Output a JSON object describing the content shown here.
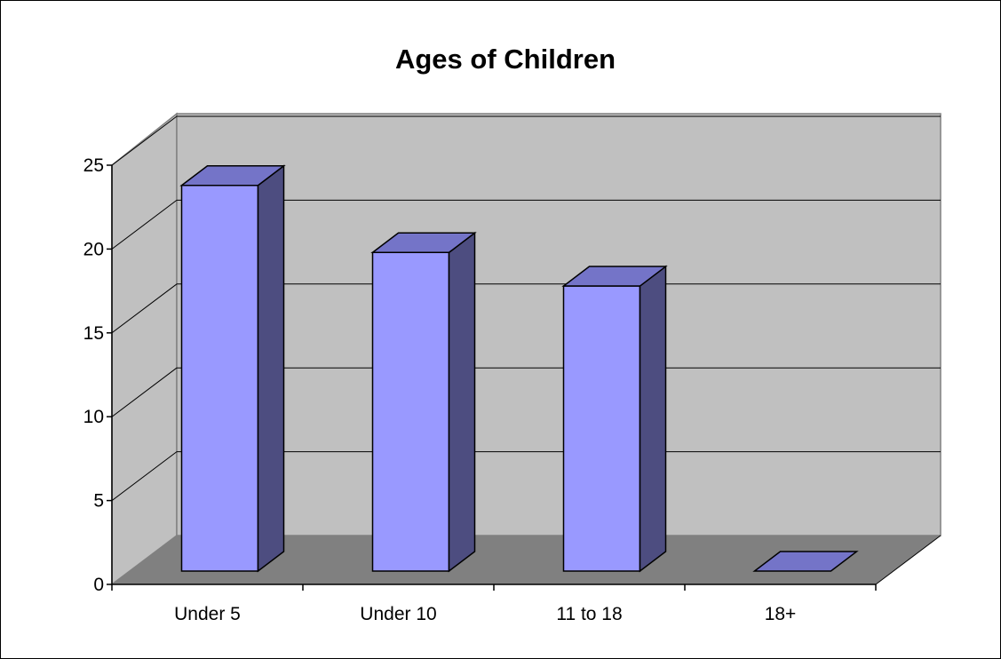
{
  "chart_data": {
    "type": "bar",
    "title": "Ages of Children",
    "xlabel": "",
    "ylabel": "",
    "categories": [
      "Under 5",
      "Under 10",
      "11 to 18",
      "18+"
    ],
    "values": [
      23,
      19,
      17,
      0
    ],
    "ylim": [
      0,
      25
    ],
    "yticks": [
      "0",
      "5",
      "10",
      "15",
      "20",
      "25"
    ],
    "grid": true,
    "legend": "none",
    "style": "3d",
    "colors": {
      "bar_front": "#9999FF",
      "bar_top": "#7474C8",
      "bar_side": "#4D4D80",
      "back_wall": "#C0C0C0",
      "side_wall": "#C0C0C0",
      "floor": "#808080",
      "gridline": "#000000"
    }
  }
}
